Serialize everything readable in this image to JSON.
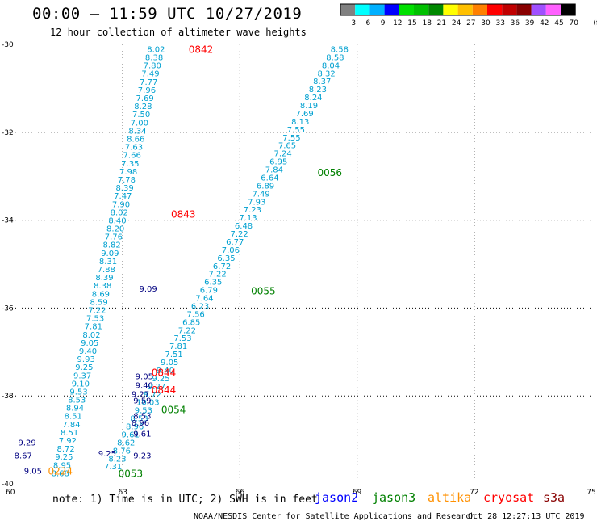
{
  "header": {
    "title": "00:00 – 11:59 UTC 10/27/2019",
    "subtitle": "12 hour collection of altimeter wave heights"
  },
  "color_scale": {
    "colors": [
      "#808080",
      "#00ffff",
      "#00b0ff",
      "#0000ff",
      "#00e000",
      "#00c000",
      "#008800",
      "#ffff00",
      "#ffc000",
      "#ff8000",
      "#ff0000",
      "#c00000",
      "#880000",
      "#a050ff",
      "#ff60ff",
      "#000000"
    ],
    "labels": [
      "3",
      "6",
      "9",
      "12",
      "15",
      "18",
      "21",
      "24",
      "27",
      "30",
      "33",
      "36",
      "39",
      "42",
      "45",
      "70",
      "(ft)"
    ]
  },
  "map": {
    "x_ticks": [
      "60",
      "63",
      "66",
      "69",
      "72",
      "75"
    ],
    "y_ticks": [
      "-30",
      "-32",
      "-34",
      "-36",
      "-38",
      "-40"
    ],
    "lon_range": [
      60,
      75
    ],
    "lat_range": [
      -40,
      -30
    ],
    "tracks": [
      {
        "satellite": "cryosat",
        "color": "#00a0d0",
        "lon_start": 61.4,
        "lat_start": -39.75,
        "lon_end": 63.85,
        "lat_end": -30.1,
        "values": [
          "8.68",
          "8.95",
          "9.25",
          "8.72",
          "7.92",
          "8.51",
          "7.84",
          "8.51",
          "8.94",
          "8.53",
          "9.53",
          "9.10",
          "9.37",
          "9.25",
          "9.93",
          "9.40",
          "9.05",
          "8.02",
          "7.81",
          "7.53",
          "7.22",
          "8.59",
          "8.69",
          "8.38",
          "8.39",
          "7.88",
          "8.31",
          "9.09",
          "8.82",
          "7.76",
          "8.20",
          "8.40",
          "8.02",
          "7.90",
          "7.47",
          "8.39",
          "7.78",
          "7.98",
          "7.35",
          "7.66",
          "7.63",
          "8.66",
          "8.34",
          "7.00",
          "7.50",
          "8.28",
          "7.69",
          "7.96",
          "7.77",
          "7.49",
          "7.80",
          "8.38",
          "8.02"
        ]
      },
      {
        "satellite": "s3a",
        "color": "#00a0d0",
        "lon_start": 62.75,
        "lat_start": -39.6,
        "lon_end": 68.55,
        "lat_end": -30.1,
        "values": [
          "7.31",
          "8.23",
          "8.76",
          "8.62",
          "9.61",
          "8.96",
          "8.53",
          "9.53",
          "10.03",
          "8.72",
          "9.27",
          "9.25",
          "9.40",
          "9.05",
          "7.51",
          "7.81",
          "7.53",
          "7.22",
          "6.85",
          "7.56",
          "6.23",
          "7.64",
          "6.79",
          "6.35",
          "7.22",
          "6.72",
          "6.35",
          "7.06",
          "6.77",
          "7.22",
          "6.48",
          "7.13",
          "7.23",
          "7.93",
          "7.49",
          "6.89",
          "6.64",
          "7.84",
          "6.95",
          "7.24",
          "7.65",
          "7.55",
          "7.55",
          "8.13",
          "7.69",
          "8.19",
          "8.24",
          "8.23",
          "8.37",
          "8.32",
          "8.04",
          "8.58",
          "8.58"
        ]
      }
    ],
    "dark_values": [
      {
        "lon": 60.55,
        "lat": -39.05,
        "text": "9.29"
      },
      {
        "lon": 60.45,
        "lat": -39.35,
        "text": "8.67"
      },
      {
        "lon": 60.7,
        "lat": -39.7,
        "text": "9.05"
      },
      {
        "lon": 62.6,
        "lat": -39.3,
        "text": "9.25"
      },
      {
        "lon": 63.5,
        "lat": -39.35,
        "text": "9.23"
      },
      {
        "lon": 63.45,
        "lat": -38.6,
        "text": "8.96"
      },
      {
        "lon": 63.5,
        "lat": -38.45,
        "text": "8.53"
      },
      {
        "lon": 63.55,
        "lat": -37.55,
        "text": "9.05"
      },
      {
        "lon": 63.55,
        "lat": -37.75,
        "text": "9.40"
      },
      {
        "lon": 63.45,
        "lat": -37.95,
        "text": "9.27"
      },
      {
        "lon": 63.5,
        "lat": -38.1,
        "text": "9.59"
      },
      {
        "lon": 63.5,
        "lat": -38.85,
        "text": "9.61"
      },
      {
        "lon": 63.65,
        "lat": -35.55,
        "text": "9.09"
      }
    ],
    "time_labels": [
      {
        "text": "0842",
        "lon": 65.0,
        "lat": -30.1,
        "color": "#ff0000"
      },
      {
        "text": "0843",
        "lon": 64.55,
        "lat": -33.85,
        "color": "#ff0000"
      },
      {
        "text": "0844",
        "lon": 64.05,
        "lat": -37.45,
        "color": "#ff0000"
      },
      {
        "text": "0844",
        "lon": 64.05,
        "lat": -37.85,
        "color": "#ff0000"
      },
      {
        "text": "0056",
        "lon": 68.3,
        "lat": -32.9,
        "color": "#008000"
      },
      {
        "text": "0055",
        "lon": 66.6,
        "lat": -35.6,
        "color": "#008000"
      },
      {
        "text": "0054",
        "lon": 64.3,
        "lat": -38.3,
        "color": "#008000"
      },
      {
        "text": "0053",
        "lon": 63.2,
        "lat": -39.75,
        "color": "#008000"
      },
      {
        "text": "0224",
        "lon": 61.4,
        "lat": -39.7,
        "color": "#ff9000"
      }
    ]
  },
  "legend": {
    "note": "note: 1) Time is in UTC; 2) SWH is in feet",
    "satellites": [
      {
        "name": "jason2",
        "color": "#0000ff"
      },
      {
        "name": "jason3",
        "color": "#008000"
      },
      {
        "name": "altika",
        "color": "#ff9000"
      },
      {
        "name": "cryosat",
        "color": "#ff0000"
      },
      {
        "name": "s3a",
        "color": "#880000"
      }
    ]
  },
  "footer": {
    "credit": "NOAA/NESDIS Center for Satellite Applications and Research",
    "timestamp": "Oct 28 12:27:13 UTC 2019"
  }
}
